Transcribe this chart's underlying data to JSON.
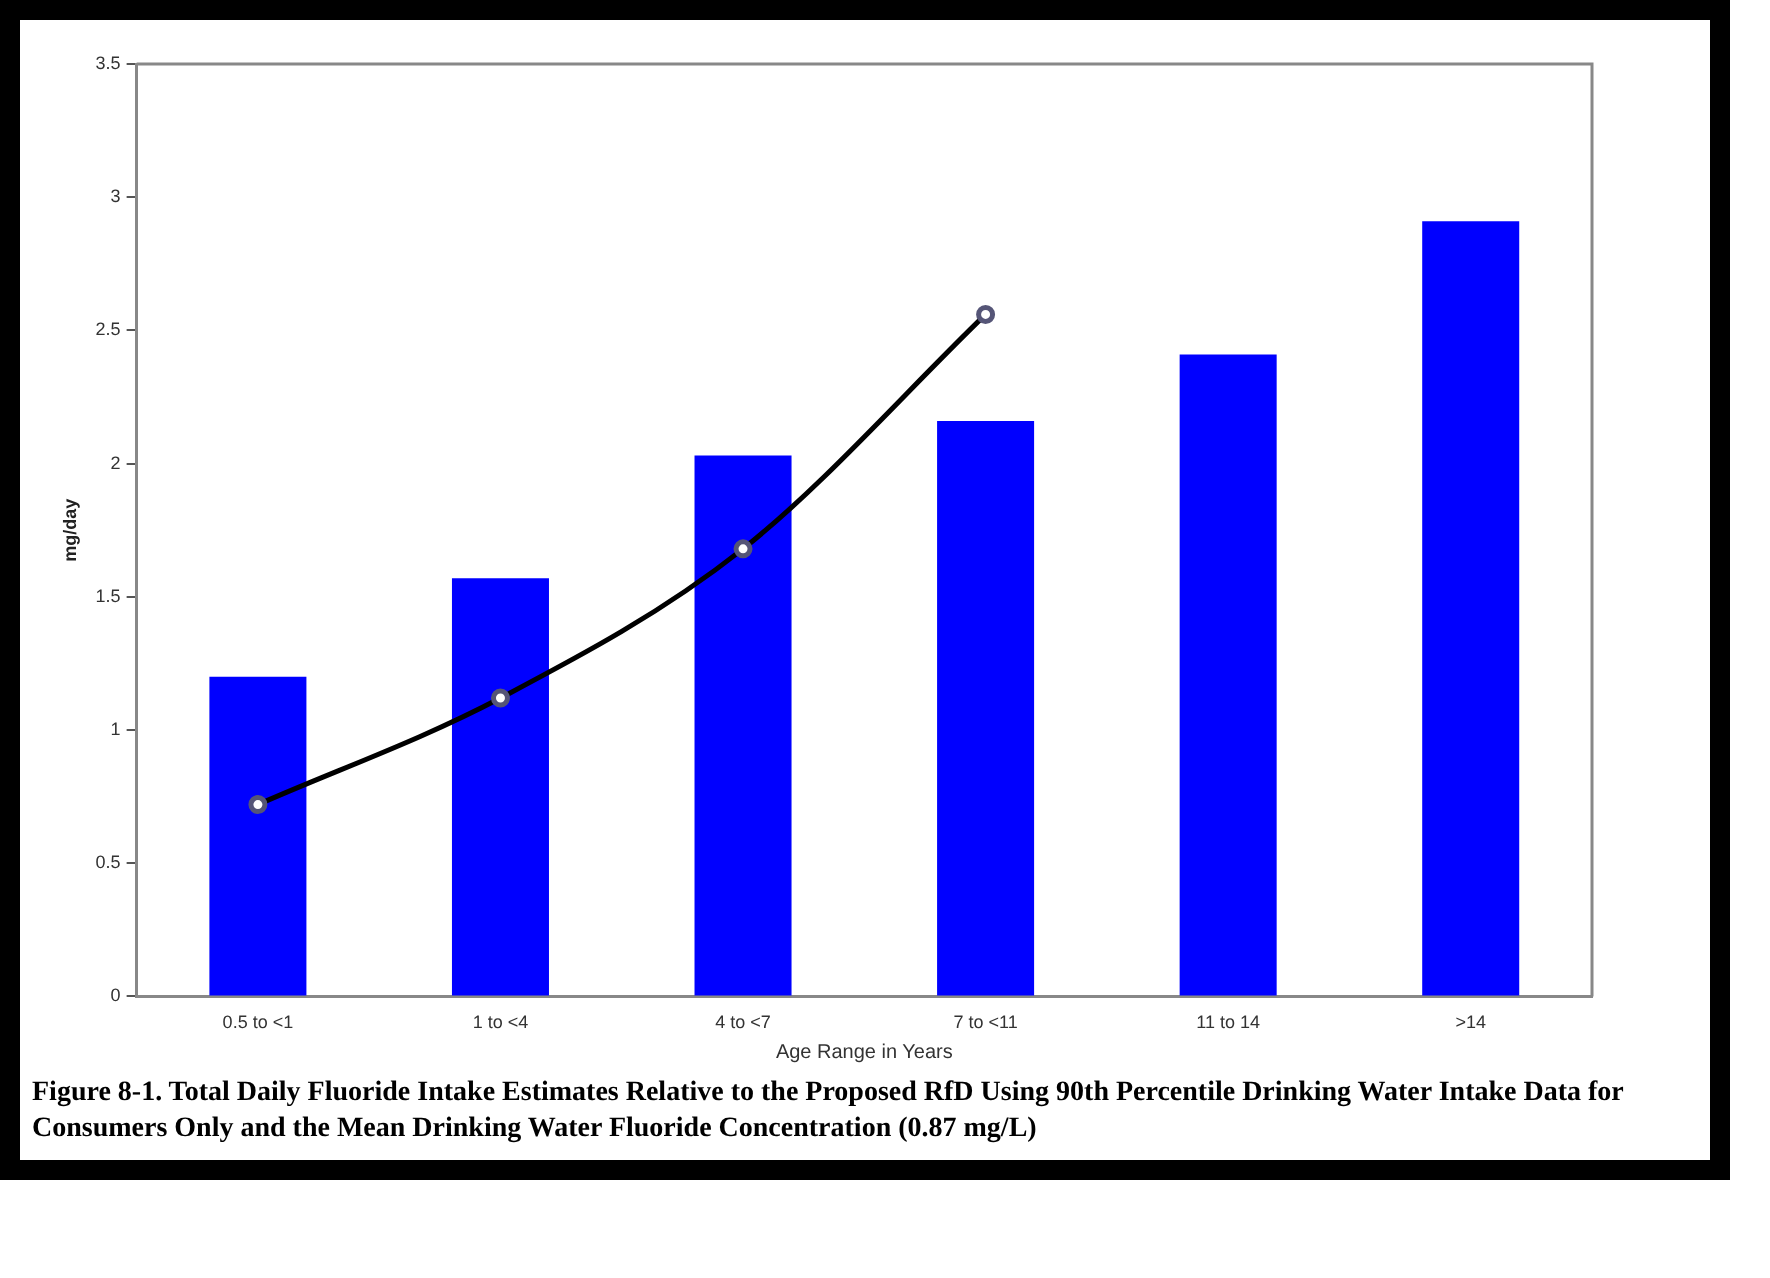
{
  "chart_data": {
    "type": "bar",
    "xlabel": "Age Range in Years",
    "ylabel": "mg/day",
    "categories": [
      "0.5 to <1",
      "1 to <4",
      "4 to <7",
      "7 to <11",
      "11 to 14",
      ">14"
    ],
    "series": [
      {
        "color": "#0000ff",
        "values": [
          1.2,
          1.57,
          2.03,
          2.16,
          2.41,
          2.91
        ]
      },
      {
        "type": "line",
        "color": "#000000",
        "values": [
          0.72,
          1.12,
          1.68,
          2.56,
          null,
          null
        ]
      }
    ],
    "ylim": [
      0,
      3.5
    ],
    "yticks": [
      0,
      0.5,
      1,
      1.5,
      2,
      2.5,
      3,
      3.5
    ],
    "grid": false,
    "legend": false,
    "marker": "circle",
    "annotations": [
      "Figure 8-1.  Total Daily Fluoride Intake Estimates Relative to the Proposed RfD Using 90th Percentile Drinking Water Intake Data for Consumers Only and the Mean Drinking Water Fluoride Concentration (0.87 mg/L)"
    ]
  }
}
